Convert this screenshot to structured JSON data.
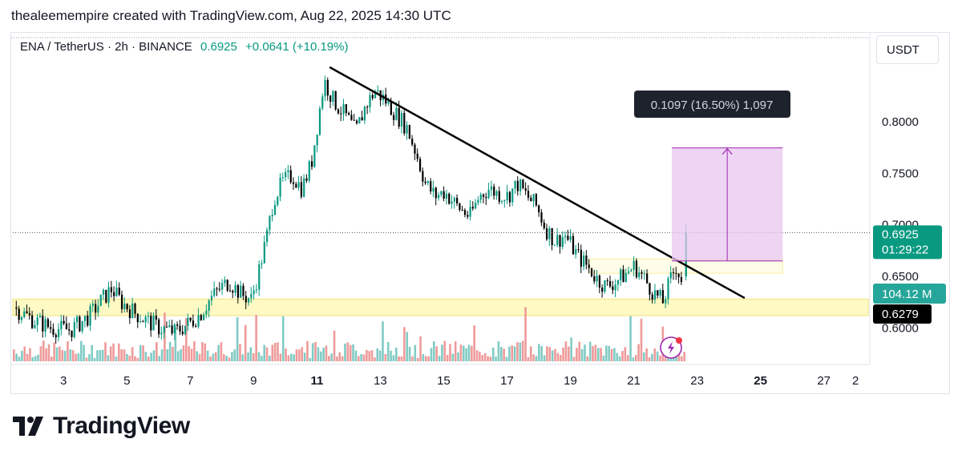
{
  "caption": "thealeemempire created with TradingView.com, Aug 22, 2025 14:30 UTC",
  "legend": {
    "symbol": "ENA / TetherUS · 2h · BINANCE",
    "price": "0.6925",
    "change": "+0.0641 (+10.19%)"
  },
  "currency": "USDT",
  "price_tag": "0.6925",
  "countdown": "01:29:22",
  "volume_tag": "104.12 M",
  "support_tag": "0.6279",
  "measure_label": "0.1097 (16.50%) 1,097",
  "logo_text": "TradingView",
  "colors": {
    "up": "#089981",
    "down": "#000000",
    "volume_up": "#80cbc4",
    "volume_down": "#ef9a9a",
    "support_zone": "#fff9c4",
    "measure_zone": "#e9c7f0",
    "measure_line": "#9c27b0",
    "trendline": "#000000",
    "price_tag_bg": "#089981",
    "support_tag_bg": "#000000"
  },
  "chart_data": {
    "type": "candlestick",
    "symbol": "ENA / TetherUS",
    "interval": "2h",
    "exchange": "BINANCE",
    "x_ticks": [
      "3",
      "5",
      "7",
      "9",
      "11",
      "13",
      "15",
      "17",
      "19",
      "21",
      "23",
      "25",
      "27",
      "2"
    ],
    "bold_x_ticks": [
      "11",
      "25"
    ],
    "y_ticks": [
      0.6,
      0.65,
      0.7,
      0.75,
      0.8
    ],
    "y_tick_labels": [
      "0.6000",
      "0.6500",
      "0.7000",
      "0.7500",
      "0.8000"
    ],
    "ylim": [
      0.57,
      0.856
    ],
    "xlim_days": [
      1.4,
      28.4
    ],
    "last_price": 0.6925,
    "support_zone": [
      0.612,
      0.628
    ],
    "resistance_zone": [
      0.653,
      0.667
    ],
    "measure": {
      "from_price": 0.665,
      "to_price": 0.7747,
      "start_day": 22.2,
      "end_day": 25.7,
      "change": 0.1097,
      "percent": 16.5,
      "ticks": 1097
    },
    "trendline": {
      "start": [
        11.4,
        0.853
      ],
      "end": [
        24.5,
        0.629
      ]
    },
    "price_path": [
      [
        1.4,
        0.62
      ],
      [
        2.0,
        0.608
      ],
      [
        2.6,
        0.6
      ],
      [
        3.2,
        0.598
      ],
      [
        3.8,
        0.612
      ],
      [
        4.2,
        0.628
      ],
      [
        4.5,
        0.638
      ],
      [
        4.8,
        0.625
      ],
      [
        5.2,
        0.615
      ],
      [
        5.6,
        0.607
      ],
      [
        6.0,
        0.6
      ],
      [
        6.5,
        0.596
      ],
      [
        7.0,
        0.606
      ],
      [
        7.3,
        0.614
      ],
      [
        7.6,
        0.628
      ],
      [
        7.9,
        0.638
      ],
      [
        8.2,
        0.645
      ],
      [
        8.6,
        0.632
      ],
      [
        8.9,
        0.628
      ],
      [
        9.1,
        0.65
      ],
      [
        9.4,
        0.69
      ],
      [
        9.6,
        0.725
      ],
      [
        9.9,
        0.742
      ],
      [
        10.2,
        0.748
      ],
      [
        10.5,
        0.735
      ],
      [
        10.8,
        0.76
      ],
      [
        11.0,
        0.8
      ],
      [
        11.2,
        0.84
      ],
      [
        11.5,
        0.82
      ],
      [
        11.9,
        0.805
      ],
      [
        12.2,
        0.79
      ],
      [
        12.5,
        0.815
      ],
      [
        12.8,
        0.83
      ],
      [
        13.1,
        0.822
      ],
      [
        13.4,
        0.81
      ],
      [
        13.8,
        0.795
      ],
      [
        14.1,
        0.77
      ],
      [
        14.4,
        0.74
      ],
      [
        14.7,
        0.728
      ],
      [
        15.0,
        0.732
      ],
      [
        15.4,
        0.718
      ],
      [
        15.8,
        0.708
      ],
      [
        16.1,
        0.728
      ],
      [
        16.4,
        0.735
      ],
      [
        16.7,
        0.73
      ],
      [
        17.0,
        0.728
      ],
      [
        17.3,
        0.74
      ],
      [
        17.6,
        0.728
      ],
      [
        17.9,
        0.718
      ],
      [
        18.2,
        0.696
      ],
      [
        18.5,
        0.684
      ],
      [
        18.8,
        0.69
      ],
      [
        19.2,
        0.67
      ],
      [
        19.5,
        0.66
      ],
      [
        19.8,
        0.648
      ],
      [
        20.1,
        0.64
      ],
      [
        20.4,
        0.645
      ],
      [
        20.7,
        0.652
      ],
      [
        21.0,
        0.66
      ],
      [
        21.3,
        0.648
      ],
      [
        21.6,
        0.634
      ],
      [
        21.9,
        0.625
      ],
      [
        22.1,
        0.644
      ],
      [
        22.3,
        0.66
      ],
      [
        22.5,
        0.645
      ],
      [
        22.6,
        0.6925
      ]
    ]
  }
}
